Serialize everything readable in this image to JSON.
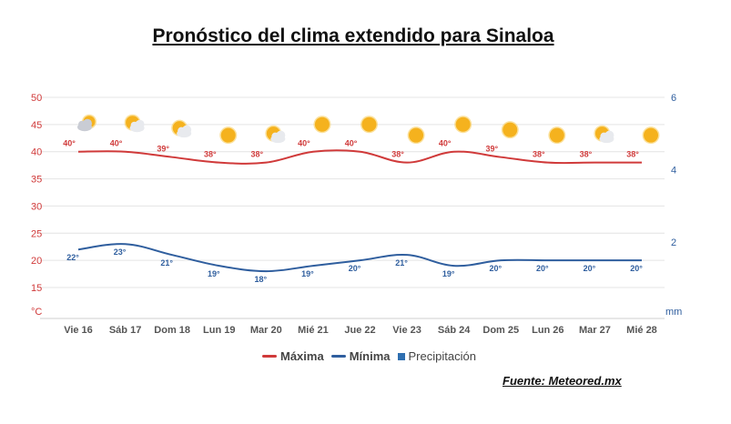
{
  "title": "Pronóstico del clima extendido para Sinaloa",
  "source": "Fuente: Meteored.mx",
  "colors": {
    "max": "#d03a3a",
    "min": "#2f5e9e",
    "precip": "#2f6fb0",
    "grid": "#e4e4e4",
    "axis_left": "#d03a3a",
    "axis_right": "#2f5e9e"
  },
  "legend": [
    {
      "label": "Máxima",
      "color": "#d03a3a",
      "style": "line"
    },
    {
      "label": "Mínima",
      "color": "#2f5e9e",
      "style": "line"
    },
    {
      "label": "Precipitación",
      "color": "#2f6fb0",
      "style": "square"
    }
  ],
  "chart_data": {
    "type": "line",
    "title": "Pronóstico del clima extendido para Sinaloa",
    "categories": [
      "Vie 16",
      "Sáb 17",
      "Dom 18",
      "Lun 19",
      "Mar 20",
      "Mié 21",
      "Jue 22",
      "Vie 23",
      "Sáb 24",
      "Dom 25",
      "Lun 26",
      "Mar 27",
      "Mié 28"
    ],
    "series": [
      {
        "name": "Máxima",
        "values": [
          40,
          40,
          39,
          38,
          38,
          40,
          40,
          38,
          40,
          39,
          38,
          38,
          38
        ],
        "labels": [
          "40°",
          "40°",
          "39°",
          "38°",
          "38°",
          "40°",
          "40°",
          "38°",
          "40°",
          "39°",
          "38°",
          "38°",
          "38°"
        ]
      },
      {
        "name": "Mínima",
        "values": [
          22,
          23,
          21,
          19,
          18,
          19,
          20,
          21,
          19,
          20,
          20,
          20,
          20
        ],
        "labels": [
          "22°",
          "23°",
          "21°",
          "19°",
          "18°",
          "19°",
          "20°",
          "21°",
          "19°",
          "20°",
          "20°",
          "20°",
          "20°"
        ]
      },
      {
        "name": "Precipitación",
        "values": [
          0,
          0,
          0,
          0,
          0,
          0,
          0,
          0,
          0,
          0,
          0,
          0,
          0
        ]
      }
    ],
    "icons": [
      "partly-cloudy-icon",
      "sun-cloud-icon",
      "sun-cloud-icon",
      "sun-icon",
      "sun-cloud-icon",
      "sun-icon",
      "sun-icon",
      "sun-icon",
      "sun-icon",
      "sun-icon",
      "sun-icon",
      "sun-cloud-icon",
      "sun-icon"
    ],
    "y_left": {
      "unit": "°C",
      "ticks": [
        15,
        20,
        25,
        30,
        35,
        40,
        45,
        50
      ],
      "ylim": [
        10,
        50
      ]
    },
    "y_right": {
      "unit": "mm",
      "ticks": [
        2,
        4,
        6
      ],
      "ylim": [
        0,
        6
      ]
    },
    "grid": true,
    "legend_position": "bottom"
  }
}
